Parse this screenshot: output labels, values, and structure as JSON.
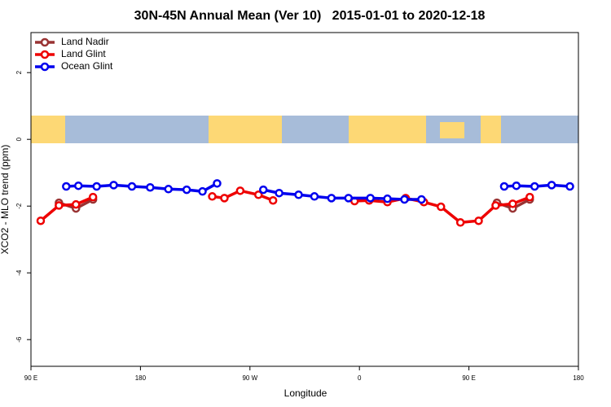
{
  "chart_data": {
    "type": "line",
    "title": "30N-45N Annual Mean (Ver 10)   2015-01-01 to 2020-12-18",
    "x_label": "Longitude",
    "y_label": "XCO2 - MLO trend (ppm)",
    "xlim": [
      90,
      540
    ],
    "xticks": [
      {
        "value": 90,
        "label": "90 E"
      },
      180,
      {
        "value": 270,
        "label": "90 W"
      },
      {
        "value": 360,
        "label": "0"
      },
      {
        "value": 450,
        "label": "90 E"
      },
      {
        "value": 540,
        "label": "180"
      }
    ],
    "ylim": [
      -6.8,
      3.2
    ],
    "yticks": [
      2,
      0,
      -2,
      -4,
      -6
    ],
    "legend": "top-left",
    "series": [
      {
        "name": "Land Nadir",
        "color": "#993333",
        "x": [
          113,
          127,
          141,
          null,
          473,
          486,
          500
        ],
        "values": [
          -1.9,
          -2.07,
          -1.8,
          null,
          -1.9,
          -2.07,
          -1.8
        ]
      },
      {
        "name": "Land Glint",
        "color": "#ee0000",
        "x": [
          98,
          113,
          127,
          141,
          null,
          239,
          249,
          262,
          277,
          289,
          null,
          356,
          368,
          383,
          398,
          413,
          427,
          443,
          458,
          472,
          486,
          500
        ],
        "values": [
          -2.44,
          -1.98,
          -1.95,
          -1.73,
          null,
          -1.71,
          -1.76,
          -1.54,
          -1.66,
          -1.83,
          null,
          -1.85,
          -1.83,
          -1.88,
          -1.76,
          -1.88,
          -2.02,
          -2.49,
          -2.44,
          -1.98,
          -1.93,
          -1.73
        ]
      },
      {
        "name": "Ocean Glint",
        "color": "#0000ee",
        "x": [
          119,
          129,
          144,
          158,
          173,
          188,
          203,
          218,
          231,
          243,
          null,
          281,
          294,
          310,
          323,
          337,
          351,
          369,
          383,
          397,
          411,
          null,
          479,
          489,
          504,
          518,
          533
        ],
        "values": [
          -1.41,
          -1.39,
          -1.41,
          -1.37,
          -1.41,
          -1.44,
          -1.49,
          -1.51,
          -1.56,
          -1.32,
          null,
          -1.51,
          -1.61,
          -1.66,
          -1.71,
          -1.76,
          -1.76,
          -1.76,
          -1.78,
          -1.8,
          -1.8,
          null,
          -1.41,
          -1.39,
          -1.41,
          -1.37,
          -1.41
        ]
      }
    ]
  }
}
